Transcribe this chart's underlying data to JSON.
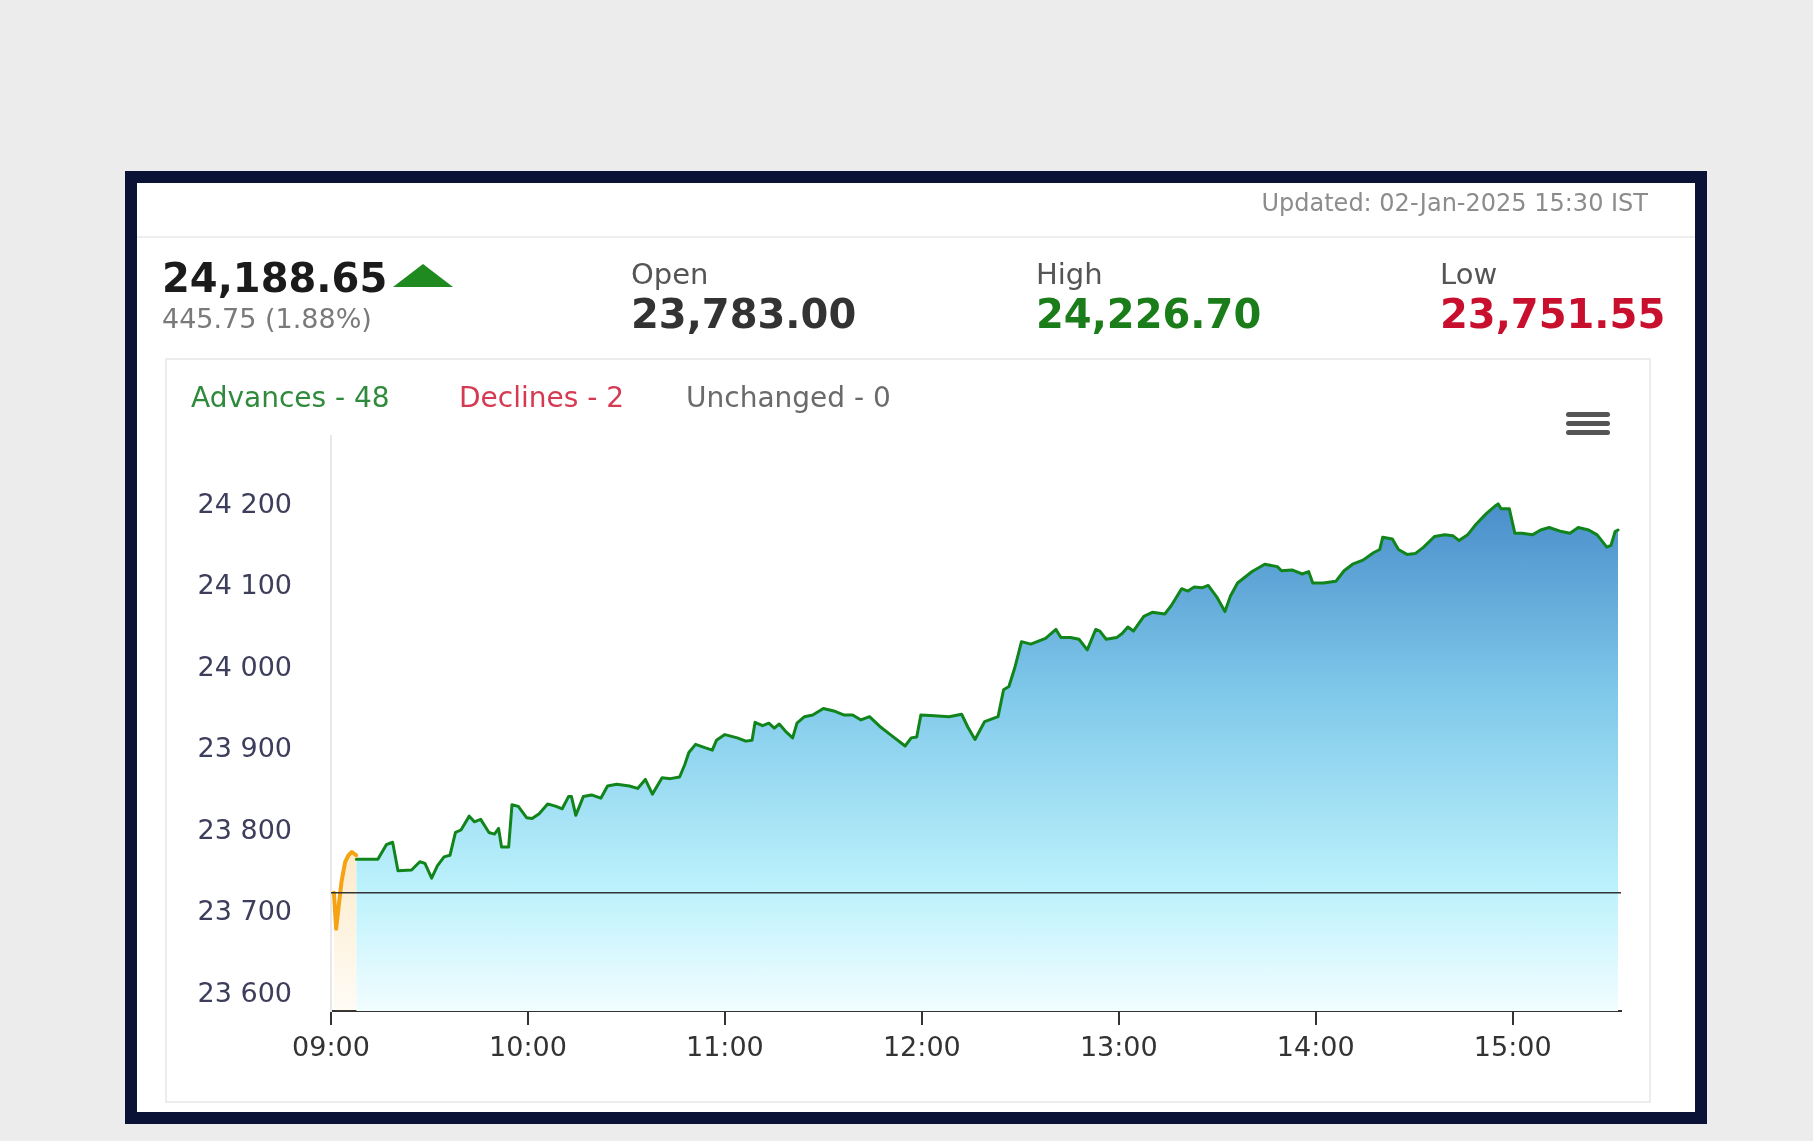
{
  "chart_data": {
    "type": "area",
    "annotations": [
      "Updated: 02-Jan-2025 15:30 IST",
      "24,188.65",
      "445.75 (1.88%)",
      "Open",
      "23,783.00",
      "High",
      "24,226.70",
      "Low",
      "23,751.55",
      "Advances - 48",
      "Declines - 2",
      "Unchanged - 0"
    ],
    "xlim": [
      9,
      15.55
    ],
    "xticks": [
      {
        "value": 9,
        "label": "09:00"
      },
      {
        "value": 10,
        "label": "10:00"
      },
      {
        "value": 11,
        "label": "11:00"
      },
      {
        "value": 12,
        "label": "12:00"
      },
      {
        "value": 13,
        "label": "13:00"
      },
      {
        "value": 14,
        "label": "14:00"
      },
      {
        "value": 15,
        "label": "15:00"
      }
    ],
    "ylim": [
      23580,
      24285
    ],
    "yticks": [
      {
        "value": 23600,
        "label": "23 600"
      },
      {
        "value": 23700,
        "label": "23 700"
      },
      {
        "value": 23800,
        "label": "23 800"
      },
      {
        "value": 23900,
        "label": "23 900"
      },
      {
        "value": 24000,
        "label": "24 000"
      },
      {
        "value": 24100,
        "label": "24 100"
      },
      {
        "value": 24200,
        "label": "24 200"
      }
    ],
    "ref_lines": [
      {
        "axis": "y",
        "value": 23725,
        "color": "#333333"
      }
    ],
    "series": [
      {
        "color": "#f5a313",
        "x": [
          9.015,
          9.026,
          9.053,
          9.072,
          9.089,
          9.106,
          9.128
        ],
        "values": [
          23725,
          23681,
          23738,
          23763,
          23771,
          23775,
          23771
        ]
      },
      {
        "color": "#11851c",
        "x": [
          9.128,
          9.238,
          9.281,
          9.313,
          9.34,
          9.409,
          9.451,
          9.477,
          9.511,
          9.54,
          9.574,
          9.604,
          9.632,
          9.66,
          9.702,
          9.728,
          9.76,
          9.802,
          9.83,
          9.851,
          9.866,
          9.902,
          9.919,
          9.951,
          9.994,
          10.021,
          10.057,
          10.1,
          10.143,
          10.174,
          10.206,
          10.221,
          10.243,
          10.281,
          10.323,
          10.37,
          10.404,
          10.451,
          10.515,
          10.557,
          10.596,
          10.632,
          10.681,
          10.723,
          10.77,
          10.796,
          10.817,
          10.851,
          10.898,
          10.936,
          10.957,
          11.0,
          11.063,
          11.106,
          11.138,
          11.153,
          11.191,
          11.223,
          11.251,
          11.276,
          11.308,
          11.344,
          11.366,
          11.404,
          11.446,
          11.5,
          11.553,
          11.606,
          11.649,
          11.691,
          11.734,
          11.787,
          11.84,
          11.915,
          11.946,
          11.974,
          11.995,
          12.063,
          12.138,
          12.202,
          12.234,
          12.27,
          12.319,
          12.387,
          12.415,
          12.442,
          12.472,
          12.506,
          12.553,
          12.628,
          12.681,
          12.706,
          12.755,
          12.798,
          12.84,
          12.883,
          12.904,
          12.936,
          12.989,
          13.017,
          13.046,
          13.074,
          13.127,
          13.17,
          13.234,
          13.266,
          13.319,
          13.351,
          13.383,
          13.422,
          13.454,
          13.497,
          13.539,
          13.567,
          13.603,
          13.677,
          13.741,
          13.805,
          13.826,
          13.879,
          13.932,
          13.964,
          13.985,
          14.038,
          14.102,
          14.144,
          14.187,
          14.24,
          14.293,
          14.325,
          14.34,
          14.389,
          14.42,
          14.463,
          14.505,
          14.548,
          14.603,
          14.655,
          14.696,
          14.728,
          14.771,
          14.814,
          14.866,
          14.909,
          14.926,
          14.941,
          14.983,
          15.011,
          15.047,
          15.1,
          15.142,
          15.185,
          15.248,
          15.291,
          15.333,
          15.386,
          15.429,
          15.478,
          15.499,
          15.52,
          15.535
        ],
        "values": [
          23766,
          23766,
          23784,
          23787,
          23752,
          23753,
          23763,
          23761,
          23743,
          23758,
          23769,
          23771,
          23799,
          23802,
          23819,
          23812,
          23815,
          23799,
          23797,
          23804,
          23781,
          23781,
          23833,
          23831,
          23817,
          23816,
          23822,
          23834,
          23831,
          23828,
          23843,
          23843,
          23820,
          23843,
          23845,
          23841,
          23856,
          23858,
          23856,
          23853,
          23864,
          23846,
          23866,
          23865,
          23867,
          23882,
          23897,
          23907,
          23903,
          23900,
          23912,
          23919,
          23915,
          23911,
          23912,
          23934,
          23930,
          23933,
          23927,
          23932,
          23923,
          23915,
          23933,
          23941,
          23943,
          23951,
          23948,
          23943,
          23943,
          23937,
          23941,
          23929,
          23919,
          23905,
          23915,
          23916,
          23943,
          23942,
          23941,
          23944,
          23928,
          23913,
          23935,
          23941,
          23974,
          23978,
          24001,
          24033,
          24030,
          24037,
          24048,
          24038,
          24038,
          24036,
          24023,
          24048,
          24046,
          24036,
          24038,
          24043,
          24051,
          24046,
          24064,
          24069,
          24067,
          24077,
          24098,
          24095,
          24100,
          24099,
          24102,
          24088,
          24070,
          24089,
          24105,
          24119,
          24128,
          24125,
          24120,
          24121,
          24116,
          24119,
          24105,
          24105,
          24107,
          24120,
          24128,
          24133,
          24142,
          24146,
          24161,
          24159,
          24146,
          24140,
          24141,
          24149,
          24162,
          24164,
          24163,
          24157,
          24164,
          24177,
          24190,
          24199,
          24202,
          24196,
          24196,
          24166,
          24166,
          24164,
          24170,
          24173,
          24168,
          24166,
          24173,
          24170,
          24164,
          24149,
          24151,
          24168,
          24170
        ]
      }
    ]
  }
}
